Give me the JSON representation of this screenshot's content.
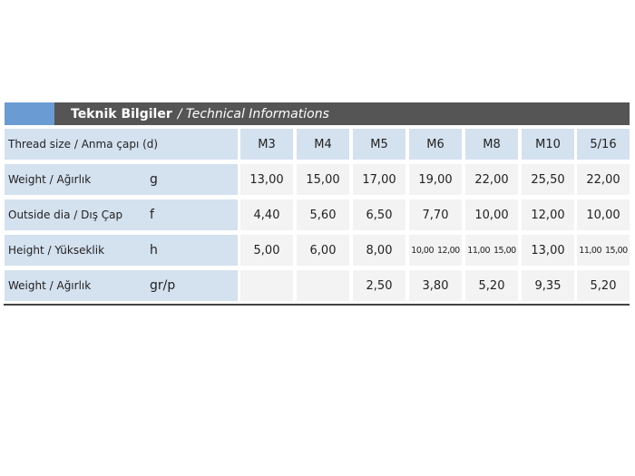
{
  "header": {
    "title": "Teknik Bilgiler",
    "subtitle": "/ Technical Informations"
  },
  "table": {
    "corner": "Thread size / Anma çapı (d)",
    "columns": [
      "M3",
      "M4",
      "M5",
      "M6",
      "M8",
      "M10",
      "5/16"
    ],
    "rows": [
      {
        "label": "Weight / Ağırlık",
        "unit": "g",
        "cells": [
          "13,00",
          "15,00",
          "17,00",
          "19,00",
          "22,00",
          "25,50",
          "22,00"
        ]
      },
      {
        "label": "Outside dia / Dış Çap",
        "unit": "f",
        "cells": [
          "4,40",
          "5,60",
          "6,50",
          "7,70",
          "10,00",
          "12,00",
          "10,00"
        ]
      },
      {
        "label": "Height / Yükseklik",
        "unit": "h",
        "cells": [
          "5,00",
          "6,00",
          "8,00",
          [
            "10,00",
            "12,00"
          ],
          [
            "11,00",
            "15,00"
          ],
          "13,00",
          [
            "11,00",
            "15,00"
          ]
        ]
      },
      {
        "label": "Weight / Ağırlık",
        "unit": "gr/p",
        "cells": [
          null,
          null,
          "2,50",
          "3,80",
          "5,20",
          "9,35",
          "5,20"
        ]
      }
    ]
  }
}
